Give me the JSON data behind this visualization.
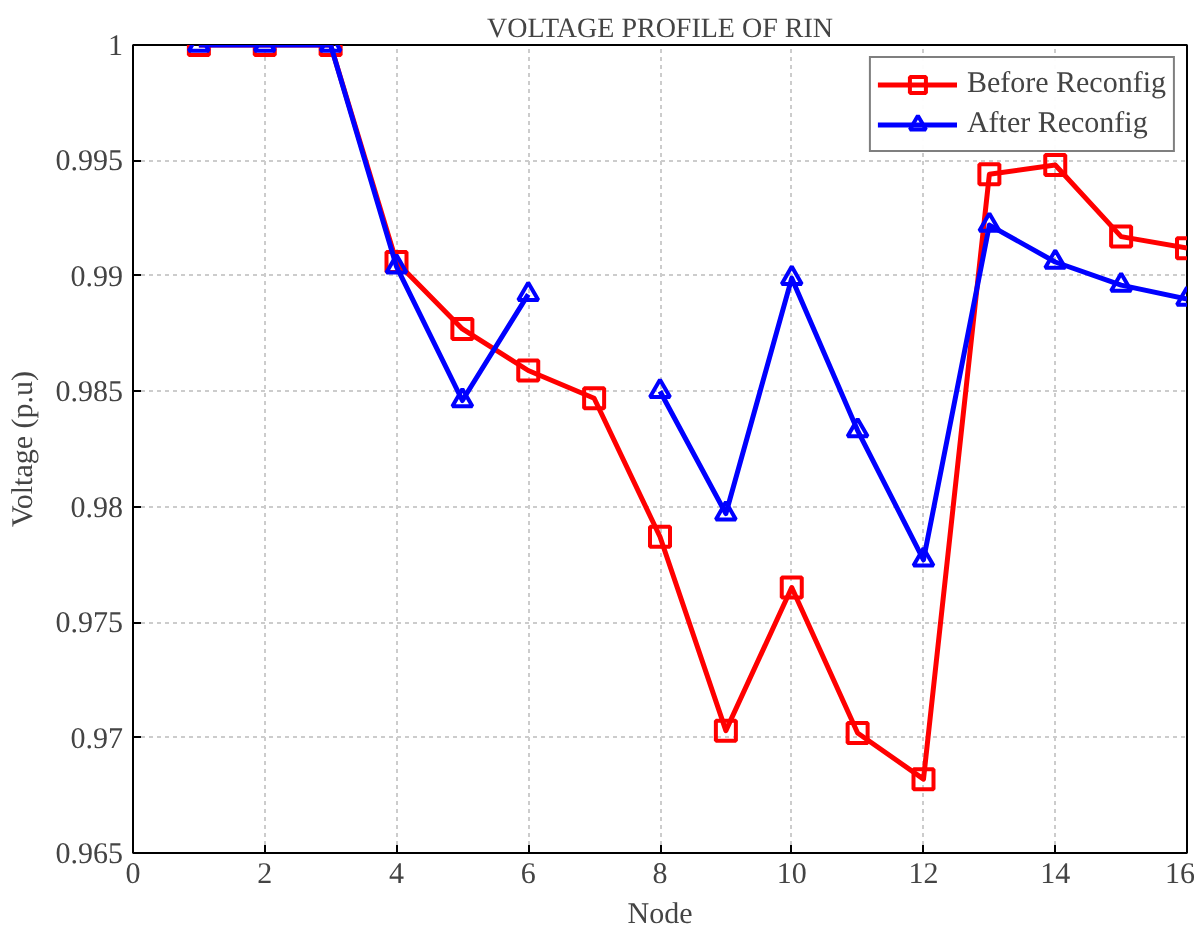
{
  "chart_data": {
    "type": "line",
    "title": "VOLTAGE PROFILE OF RIN",
    "xlabel": "Node",
    "ylabel": "Voltage (p.u)",
    "x": [
      1,
      2,
      3,
      4,
      5,
      6,
      7,
      8,
      9,
      10,
      11,
      12,
      13,
      14,
      15,
      16
    ],
    "series": [
      {
        "name": "Before Reconfig",
        "color": "#ff0000",
        "marker": "square",
        "values": [
          1,
          1,
          1,
          0.9906,
          0.9877,
          0.9859,
          0.9847,
          0.9787,
          0.9703,
          0.9765,
          0.9702,
          0.9682,
          0.9944,
          0.9948,
          0.9917,
          0.9912
        ]
      },
      {
        "name": "After Reconfig",
        "color": "#0000ff",
        "marker": "triangle",
        "values": [
          1,
          1,
          1,
          0.9904,
          0.9846,
          0.9892,
          null,
          0.985,
          0.9797,
          0.9899,
          0.9833,
          0.9777,
          0.9922,
          0.9906,
          0.9896,
          0.989
        ]
      }
    ],
    "xlim": [
      0,
      16
    ],
    "xticks": [
      0,
      2,
      4,
      6,
      8,
      10,
      12,
      14,
      16
    ],
    "ylim": [
      0.965,
      1
    ],
    "yticks": [
      0.965,
      0.97,
      0.975,
      0.98,
      0.985,
      0.99,
      0.995,
      1
    ],
    "grid": true,
    "legend": "top right",
    "line_style": "solid"
  }
}
